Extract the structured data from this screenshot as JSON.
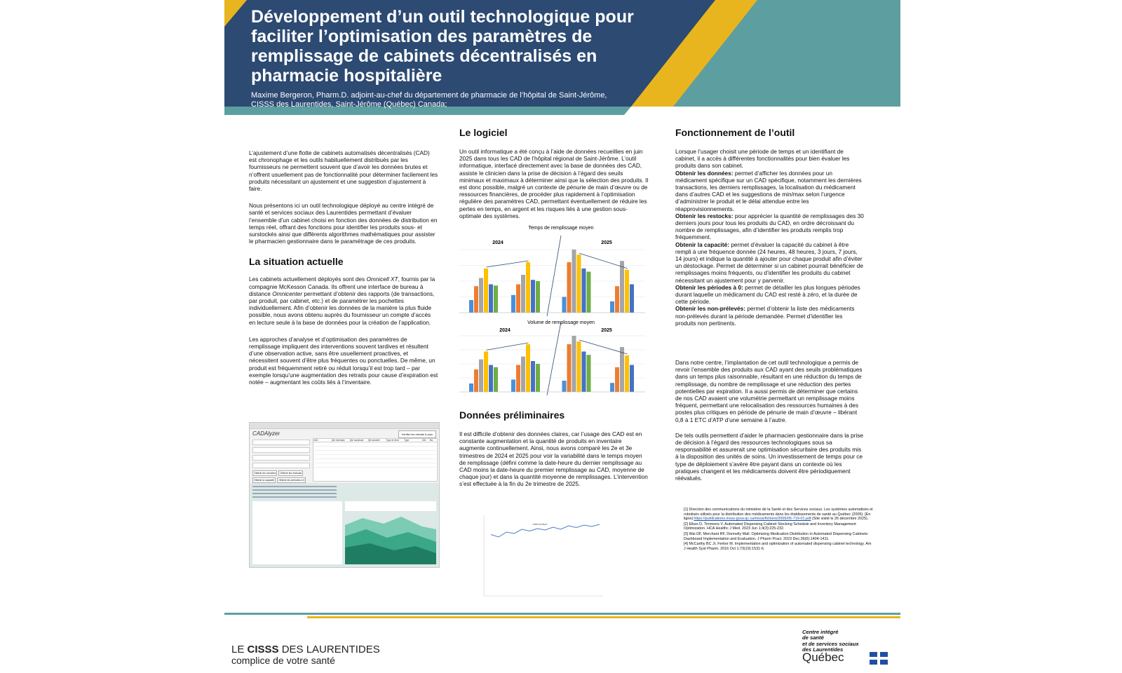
{
  "header": {
    "title": "Développement d’un outil technologique pour faciliter l’optimisation des paramètres de remplissage de cabinets décentralisés en pharmacie hospitalière",
    "authors": "Maxime Bergeron, Pharm.D. adjoint-au-chef du département de pharmacie de l’hôpital de Saint-Jérôme, CISSS des Laurentides, Saint-Jérôme (Québec) Canada;",
    "colors": {
      "navy": "#2c4a72",
      "teal": "#5d9ea0",
      "gold": "#e9b51e"
    }
  },
  "intro": {
    "p1": "L’ajustement d’une flotte de cabinets automatisés décentralisés (CAD) est chronophage et les outils habituellement distribués par les fournisseurs ne permettent souvent que d’avoir les données brutes et n’offrent usuellement pas de fonctionnalité pour déterminer facilement les produits nécessitant un ajustement et une suggestion d’ajustement à faire.",
    "p2": "Nous présentons ici un outil technologique déployé au centre intégré de santé et services sociaux des Laurentides permettant d’évaluer l’ensemble d’un cabinet choisi en fonction des données de distribution en temps réel, offrant des fonctions pour identifier les produits sous- et surstockés ainsi que différents algorithmes mathématiques pour assister le pharmacien gestionnaire dans le paramétrage de ces produits."
  },
  "situation": {
    "heading": "La situation actuelle",
    "p1_a": "Les cabinets actuellement déployés sont des ",
    "p1_em1": "Omnicell XT",
    "p1_b": ", fournis par la compagnie McKesson Canada. Ils offrent une interface de bureau à distance ",
    "p1_em2": "Omnicenter",
    "p1_c": " permettant d’obtenir des rapports (de transactions, par produit, par cabinet, etc.) et de paramétrer les pochettes individuellement. Afin d’obtenir les données de la manière la plus fluide possible, nous avons obtenu auprès du fournisseur un compte d’accès en lecture seule à la base de données pour la création de l’application.",
    "p2": "Les approches d’analyse et d’optimisation des paramètres de remplissage impliquent des interventions souvent tardives et résultent d’une observation active, sans être usuellement proactives, et nécessitent souvent d’être plus fréquentes ou ponctuelles. De même, un produit est fréquemment retiré ou réduit lorsqu’il est trop tard – par exemple lorsqu’une augmentation des retraits pour cause d’expiration est notée – augmentant les coûts liés à l’inventaire."
  },
  "software": {
    "heading": "Le logiciel",
    "p1": "Un outil informatique a été conçu à l’aide de données recueillies en juin 2025 dans tous les CAD de l’hôpital régional de Saint-Jérôme. L’outil informatique, interfacé directement avec la base de données des CAD, assiste le clinicien dans la prise de décision à l’égard des seuils minimaux et maximaux à déterminer ainsi que la sélection des produits. Il est donc possible, malgré un contexte de pénurie de main d’œuvre ou de ressources financières, de procéder plus rapidement à l’optimisation régulière des paramètres CAD, permettant éventuellement de réduire les pertes en temps, en argent et les risques liés à une gestion sous-optimale des systèmes."
  },
  "preliminary": {
    "heading": "Données préliminaires",
    "p1": "Il est difficile d’obtenir des données claires, car l’usage des CAD est en constante augmentation et la quantité de produits en inventaire augmente continuellement. Ainsi, nous avons comparé les 2e et 3e trimestres de 2024 et 2025 pour voir la variabilité dans le temps moyen de remplissage (défini comme la date-heure du dernier remplissage au CAD moins la date-heure du premier remplissage au CAD, moyenne de chaque jour) et dans la quantité moyenne de remplissages. L’intervention s’est effectuée à la fin du 2e trimestre de 2025."
  },
  "tool": {
    "heading": "Fonctionnement de l’outil",
    "intro": "Lorsque l’usager choisit une période de temps et un identifiant de cabinet, il a accès à différentes fonctionnalités pour bien évaluer les produits dans son cabinet.",
    "items": [
      {
        "lead": "Obtenir les données:",
        "text": " permet d’afficher les données pour un médicament spécifique sur un CAD spécifique, notamment les dernières transactions, les derniers remplissages, la localisation du médicament dans d’autres CAD et les suggestions de min/max selon l’urgence d’administrer le produit et le délai attendue entre les réapprovisionnements."
      },
      {
        "lead": "Obtenir les restocks:",
        "text": " pour apprécier la quantité de remplissages des 30 derniers jours pour tous les produits du CAD, en ordre décroissant du nombre de remplissages, afin d’identifier les produits remplis trop fréquemment."
      },
      {
        "lead": "Obtenir la capacité:",
        "text": " permet d’évaluer la capacité du cabinet à être rempli à une fréquence donnée (24 heures, 48 heures, 3 jours, 7 jours, 14 jours) et indique la quantité à ajouter pour chaque produit afin d’éviter un déstockage. Permet de déterminer si un cabinet pourrait bénéficier de remplissages moins fréquents, ou d’identifier les produits du cabinet nécessitant un ajustement pour y parvenir."
      },
      {
        "lead": "Obtenir les périodes à 0:",
        "text": " permet de détailler les plus longues périodes durant laquelle un médicament du CAD est resté à zéro, et la durée de cette période."
      },
      {
        "lead": "Obtenir les non-prélevés:",
        "text": " permet d’obtenir la liste des médicaments non-prélevés durant la période demandée. Permet d’identifier les produits non pertinents."
      }
    ],
    "p_center": "Dans notre centre, l’implantation de cet outil technologique a permis de revoir l’ensemble des produits aux CAD ayant des seuils problématiques dans un temps plus raisonnable, résultant en une réduction du temps de remplissage, du nombre de remplissage et une réduction des pertes potentielles par expiration. Il a aussi permis de déterminer que certains de nos CAD avaient une volumétrie permettant un remplissage moins fréquent, permettant une relocalisation des ressources humaines à des postes plus critiques en période de pénurie de main d’œuvre – libérant 0,8 à 1 ETC d’ATP d’une semaine à l’autre.",
    "p_conclusion": "De tels outils permettent d’aider le pharmacien gestionnaire dans la prise de décision à l’égard des ressources technologiques sous sa responsabilité et assurerait une optimisation sécuritaire des produits mis à la disposition des unités de soins. Un investissement de temps pour ce type de déploiement s’avère être payant dans un contexte où les pratiques changent et les médicaments doivent être périodiquement réévalués."
  },
  "references": [
    {
      "text": "[1] Direction des communications du ministère de la Santé et des Services sociaux. Les systèmes automatisés et robotisés utilisés pour la distribution des médicaments dans les établissements de santé au Québec (2005). [En ligne] ",
      "link": "https://publications.msss.gouv.qc.ca/msss/fichiers/2005/05-719-01.pdf",
      "after": " (Site visité le 26 décembre 2025)."
    },
    {
      "text": "[2] Elkes D, Timmons V. Automated Dispensing Cabinet Stocking Schedule and Inventory Management Optimization. HCA Healthc J Med. 2023 Jun 1;4(3):225-232.",
      "link": "",
      "after": ""
    },
    {
      "text": "[3] Wai DF, Merchant RF, Donnelly Mall. Optimizing Medication Distribution in Automated Dispensing Cabinets: Dashboard Implementation and Evaluation. J Pharm Pract. 2023 Dec;36(6):1404-1411.",
      "link": "",
      "after": ""
    },
    {
      "text": "[4] McCarthy BC Jr, Ferker M. Implementation and optimization of automated dispensing cabinet technology. Am J Health Syst Pharm. 2016 Oct 1;73(19):1531-6.",
      "link": "",
      "after": ""
    }
  ],
  "chart_data": [
    {
      "type": "bar",
      "title": "Temps de remplissage moyen",
      "panels": [
        {
          "label": "2024",
          "groups": [
            [
              20,
              42,
              55,
              70,
              45,
              43
            ],
            [
              28,
              45,
              60,
              80,
              52,
              50
            ]
          ]
        },
        {
          "label": "2025",
          "groups": [
            [
              25,
              80,
              100,
              92,
              70,
              65
            ],
            [
              18,
              42,
              82,
              68,
              45
            ]
          ]
        }
      ],
      "colors": [
        "#4a90d9",
        "#ed7d31",
        "#a5a5a5",
        "#ffc000",
        "#4472c4",
        "#70ad47"
      ]
    },
    {
      "type": "bar",
      "title": "Volume de remplissage moyen",
      "panels": [
        {
          "label": "2024",
          "groups": [
            [
              15,
              40,
              58,
              72,
              48,
              44
            ],
            [
              22,
              48,
              63,
              85,
              55,
              50
            ]
          ]
        },
        {
          "label": "2025",
          "groups": [
            [
              20,
              85,
              100,
              90,
              72,
              66
            ],
            [
              16,
              44,
              80,
              65,
              48
            ]
          ]
        }
      ],
      "colors": [
        "#4a90d9",
        "#ed7d31",
        "#a5a5a5",
        "#ffc000",
        "#4472c4",
        "#70ad47"
      ]
    },
    {
      "type": "line",
      "title": "",
      "values": [
        45,
        38,
        52,
        48,
        60,
        55,
        62,
        58,
        66,
        60,
        70,
        65,
        72,
        68,
        74
      ],
      "annotation": "Intervention"
    }
  ],
  "app": {
    "name": "CADAlyzer",
    "button": "Vérifier les retraits & plus",
    "sidebar_buttons": [
      "Obtenir les données",
      "Obtenir les restocks",
      "Obtenir la capacité",
      "Obtenir les périodes à 0",
      "Obtenir les non-prélevés"
    ],
    "table_columns": [
      "CAD",
      "Qté minimale",
      "Qté maximale",
      "Qté actuelle",
      "Type de tiroir",
      "Type",
      "Min",
      "Ma"
    ]
  },
  "footer": {
    "left_pre": "LE ",
    "left_bold": "CISSS",
    "left_post": " DES LAURENTIDES",
    "left_sub": "complice de votre santé",
    "right_lines": [
      "Centre intégré",
      "de santé",
      "et de services sociaux",
      "des Laurentides"
    ],
    "right_qc": "Québec"
  }
}
